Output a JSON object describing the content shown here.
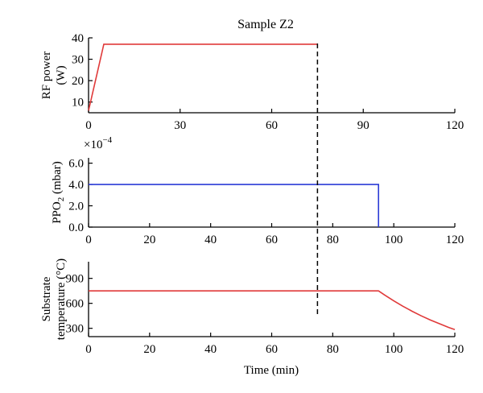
{
  "title": "Sample Z2",
  "xlabel": "Time (min)",
  "marker_x": 75,
  "chart_data": [
    {
      "type": "line",
      "panel": "rf-power",
      "ylabel": "RF power (W)",
      "ylabel_lines": [
        "RF power",
        "(W)"
      ],
      "xlim": [
        0,
        120
      ],
      "ylim": [
        5,
        40
      ],
      "xticks": [
        0,
        30,
        60,
        90,
        120
      ],
      "yticks": [
        10,
        20,
        30,
        40
      ],
      "ytick_labels": [
        "10",
        "20",
        "30",
        "40"
      ],
      "color": "#e03a3a",
      "series": [
        {
          "x": [
            0,
            5,
            75
          ],
          "y": [
            6,
            37,
            37
          ]
        }
      ]
    },
    {
      "type": "line",
      "panel": "ppo2",
      "ylabel": "PPO2 (mbar)",
      "ylabel_main": "PPO",
      "ylabel_sub": "2",
      "ylabel_unit": " (mbar)",
      "multiplier_base": "×10",
      "multiplier_exp": "−4",
      "xlim": [
        0,
        120
      ],
      "ylim": [
        0,
        6.5
      ],
      "xticks": [
        0,
        20,
        40,
        60,
        80,
        100,
        120
      ],
      "yticks": [
        0,
        2,
        4,
        6
      ],
      "ytick_labels": [
        "0.0",
        "2.0",
        "4.0",
        "6.0"
      ],
      "color": "#2b3bd6",
      "series": [
        {
          "x": [
            0,
            95,
            95
          ],
          "y": [
            4,
            4,
            0
          ]
        }
      ]
    },
    {
      "type": "line",
      "panel": "substrate-temperature",
      "ylabel": "Substrate temperature (°C)",
      "ylabel_lines": [
        "Substrate",
        "temperature (°C)"
      ],
      "xlim": [
        0,
        120
      ],
      "ylim": [
        200,
        1100
      ],
      "xticks": [
        0,
        20,
        40,
        60,
        80,
        100,
        120
      ],
      "yticks": [
        300,
        600,
        900
      ],
      "ytick_labels": [
        "300",
        "600",
        "900"
      ],
      "color": "#e03a3a",
      "series": [
        {
          "x": [
            0,
            95,
            97,
            100,
            103,
            106,
            109,
            112,
            115,
            118,
            120
          ],
          "y": [
            750,
            750,
            700,
            630,
            565,
            505,
            450,
            400,
            355,
            310,
            285
          ]
        }
      ]
    }
  ]
}
